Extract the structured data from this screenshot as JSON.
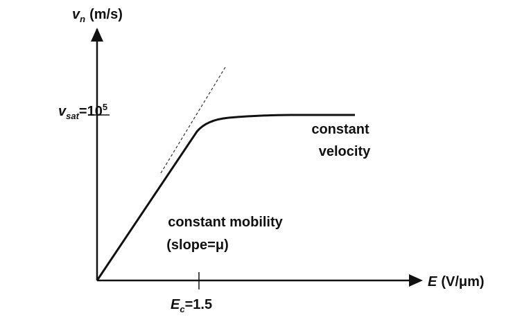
{
  "y_axis": {
    "symbol": "v",
    "subscript": "n",
    "unit": "(m/s)"
  },
  "x_axis": {
    "symbol": "E",
    "unit": "(V/μm)"
  },
  "y_marker": {
    "symbol": "v",
    "subscript": "sat",
    "rest": "=10",
    "superscript": "5"
  },
  "x_marker": {
    "symbol": "E",
    "subscript": "c",
    "rest": "=1.5"
  },
  "regions": [
    {
      "lines": [
        "constant",
        "velocity"
      ]
    },
    {
      "lines": [
        "constant mobility",
        "(slope=μ)"
      ]
    }
  ]
}
